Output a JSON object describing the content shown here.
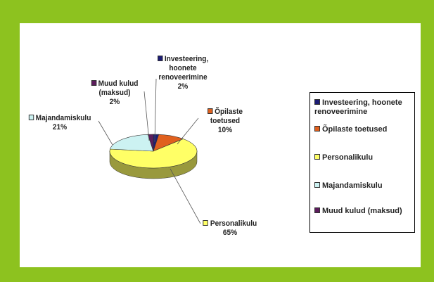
{
  "chart_data": {
    "type": "pie",
    "categories": [
      "Investeering, hoonete renoveerimine",
      "Õpilaste toetused",
      "Personalikulu",
      "Majandamiskulu",
      "Muud kulud (maksud)"
    ],
    "values": [
      2,
      10,
      65,
      21,
      2
    ],
    "value_labels": [
      "2%",
      "10%",
      "65%",
      "21%",
      "2%"
    ],
    "colors": [
      "#1c1c74",
      "#e0601e",
      "#ffff66",
      "#ccf2f2",
      "#5c1c5c"
    ],
    "legend": "right"
  }
}
